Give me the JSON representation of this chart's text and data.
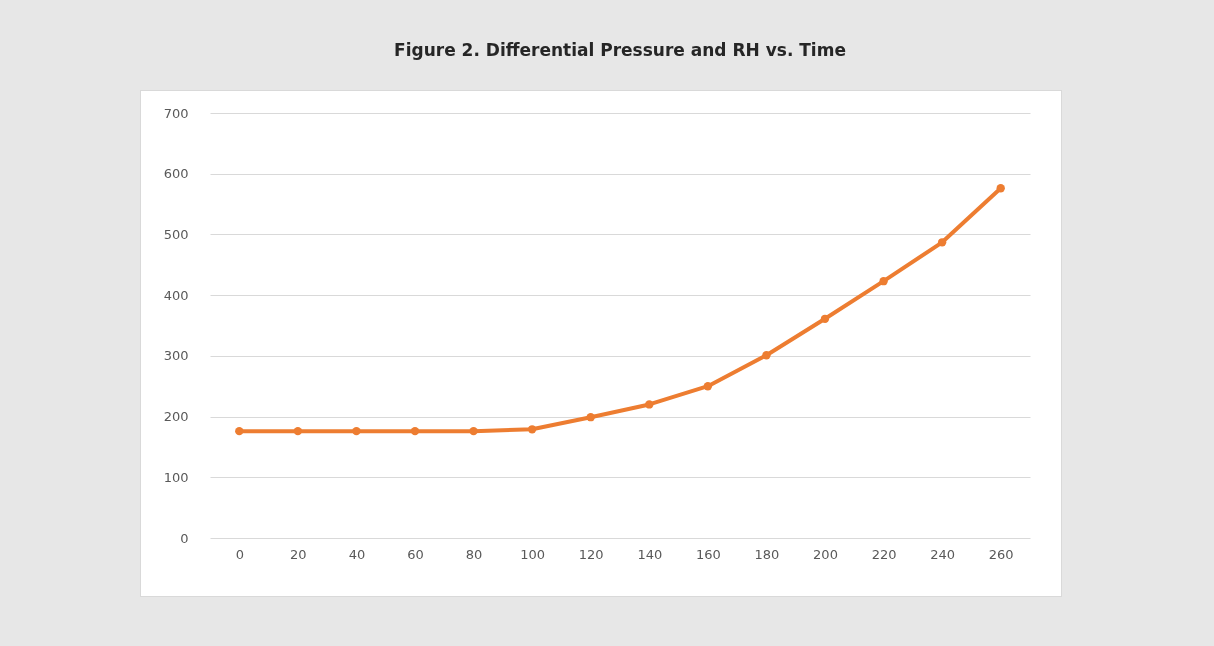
{
  "chart_data": {
    "type": "line",
    "title": "Figure 2. Differential Pressure and RH vs. Time",
    "categories": [
      "0",
      "20",
      "40",
      "60",
      "80",
      "100",
      "120",
      "140",
      "160",
      "180",
      "200",
      "220",
      "240",
      "260"
    ],
    "series": [
      {
        "color": "#ed7d31",
        "values": [
          176,
          176,
          176,
          176,
          176,
          179,
          199,
          220,
          250,
          301,
          361,
          423,
          487,
          576
        ]
      }
    ],
    "ylim": [
      0,
      700
    ],
    "yticks": [
      0,
      100,
      200,
      300,
      400,
      500,
      600,
      700
    ],
    "grid": "y",
    "marker": "circle",
    "line_style": "solid",
    "legend": false
  }
}
